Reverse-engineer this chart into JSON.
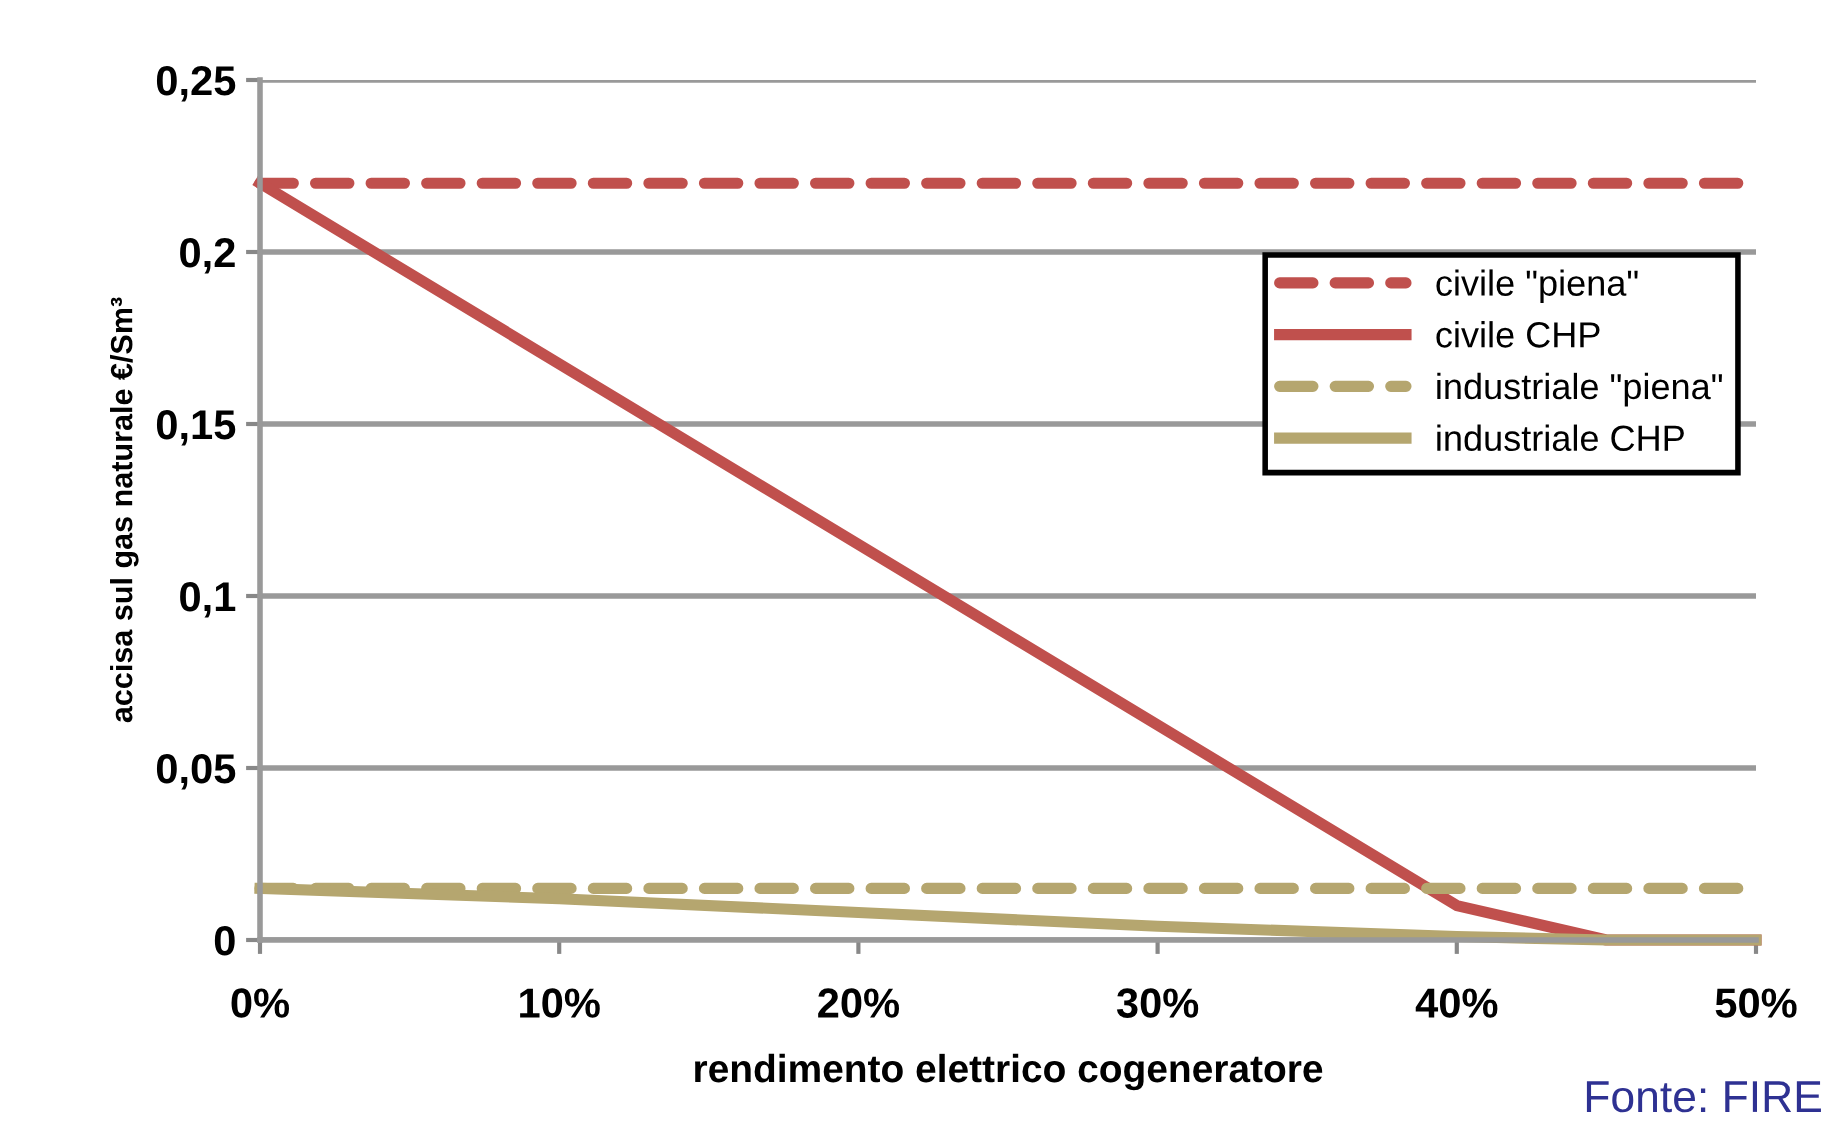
{
  "chart_data": {
    "type": "line",
    "xlabel": "rendimento elettrico cogeneratore",
    "ylabel": "accisa sul gas naturale €/Sm³",
    "annotations": [
      "Fonte: FIRE"
    ],
    "xlim": [
      0,
      50
    ],
    "xticks": [
      {
        "value": 0,
        "label": "0%"
      },
      {
        "value": 10,
        "label": "10%"
      },
      {
        "value": 20,
        "label": "20%"
      },
      {
        "value": 30,
        "label": "30%"
      },
      {
        "value": 40,
        "label": "40%"
      },
      {
        "value": 50,
        "label": "50%"
      }
    ],
    "ylim": [
      0,
      0.25
    ],
    "yticks": [
      {
        "value": 0,
        "label": "0"
      },
      {
        "value": 0.05,
        "label": "0,05"
      },
      {
        "value": 0.1,
        "label": "0,1"
      },
      {
        "value": 0.15,
        "label": "0,15"
      },
      {
        "value": 0.2,
        "label": "0,2"
      },
      {
        "value": 0.25,
        "label": "0,25"
      }
    ],
    "grid": "y",
    "legend": "right",
    "marker": "none",
    "series": [
      {
        "name": "civile \"piena\"",
        "color": "#c0504d",
        "line_style": "dashed",
        "x": [
          0,
          50
        ],
        "values": [
          0.22,
          0.22
        ]
      },
      {
        "name": "civile CHP",
        "color": "#c0504d",
        "line_style": "solid",
        "x": [
          0,
          40,
          45,
          50
        ],
        "values": [
          0.22,
          0.01,
          0,
          0
        ]
      },
      {
        "name": "industriale \"piena\"",
        "color": "#b5a66f",
        "line_style": "dashed",
        "x": [
          0,
          50
        ],
        "values": [
          0.015,
          0.015
        ]
      },
      {
        "name": "industriale CHP",
        "color": "#b5a66f",
        "line_style": "solid",
        "x": [
          0,
          10,
          20,
          30,
          40,
          45,
          50
        ],
        "values": [
          0.015,
          0.012,
          0.008,
          0.004,
          0.001,
          0,
          0
        ]
      }
    ]
  }
}
